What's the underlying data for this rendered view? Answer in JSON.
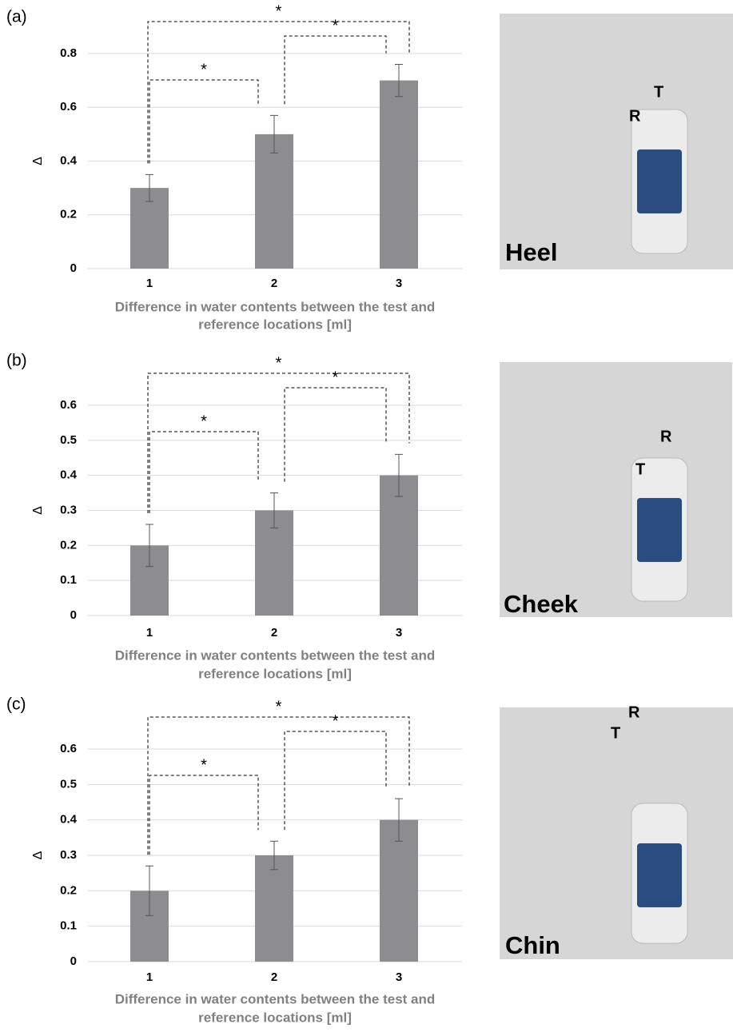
{
  "chart_data": [
    {
      "type": "bar",
      "panel": "(a)",
      "ylabel": "Δ",
      "categories": [
        "1",
        "2",
        "3"
      ],
      "values": [
        0.3,
        0.5,
        0.7
      ],
      "errors": [
        0.05,
        0.07,
        0.06
      ],
      "color": "#8d8d8f",
      "ylim": [
        0,
        0.8
      ],
      "yticks": [
        0,
        0.2,
        0.4,
        0.6,
        0.8
      ],
      "grid": true,
      "xlabel": [
        "Difference in water contents between the test and",
        "reference locations [ml]"
      ],
      "annotations": [
        "*",
        "*",
        "*"
      ],
      "photo": {
        "label": "Heel",
        "marks": [
          "R",
          "T"
        ]
      }
    },
    {
      "type": "bar",
      "panel": "(b)",
      "ylabel": "Δ",
      "categories": [
        "1",
        "2",
        "3"
      ],
      "values": [
        0.2,
        0.3,
        0.4
      ],
      "errors": [
        0.06,
        0.05,
        0.06
      ],
      "color": "#8d8d8f",
      "ylim": [
        0,
        0.6
      ],
      "yticks": [
        0,
        0.1,
        0.2,
        0.3,
        0.4,
        0.5,
        0.6
      ],
      "grid": true,
      "xlabel": [
        "Difference in water contents between the test and",
        "reference locations [ml]"
      ],
      "annotations": [
        "*",
        "*",
        "*"
      ],
      "photo": {
        "label": "Cheek",
        "marks": [
          "R",
          "T"
        ]
      }
    },
    {
      "type": "bar",
      "panel": "(c)",
      "ylabel": "Δ",
      "categories": [
        "1",
        "2",
        "3"
      ],
      "values": [
        0.2,
        0.3,
        0.4
      ],
      "errors": [
        0.07,
        0.04,
        0.06
      ],
      "color": "#8d8d8f",
      "ylim": [
        0,
        0.6
      ],
      "yticks": [
        0,
        0.1,
        0.2,
        0.3,
        0.4,
        0.5,
        0.6
      ],
      "grid": true,
      "xlabel": [
        "Difference in water contents between the test and",
        "reference locations [ml]"
      ],
      "annotations": [
        "*",
        "*",
        "*"
      ],
      "photo": {
        "label": "Chin",
        "marks": [
          "R",
          "T"
        ]
      }
    }
  ]
}
